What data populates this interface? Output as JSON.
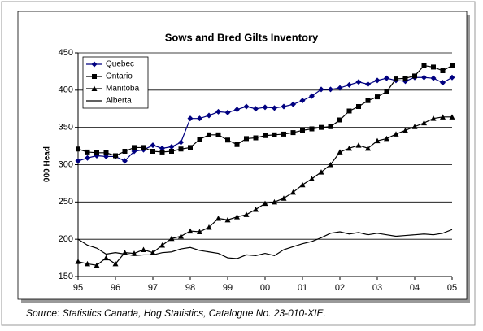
{
  "chart_data": {
    "type": "line",
    "title": "Sows and Bred Gilts Inventory",
    "ylabel": "000 Head",
    "source": "Source: Statistics Canada, Hog Statistics, Catalogue No. 23-010-XIE.",
    "categories": [
      "95",
      null,
      null,
      null,
      "96",
      null,
      null,
      null,
      "97",
      null,
      null,
      null,
      "98",
      null,
      null,
      null,
      "99",
      null,
      null,
      null,
      "00",
      null,
      null,
      null,
      "01",
      null,
      null,
      null,
      "02",
      null,
      null,
      null,
      "03",
      null,
      null,
      null,
      "04",
      null,
      null,
      null,
      "05"
    ],
    "ylim": [
      150,
      450
    ],
    "yticks": [
      150,
      200,
      250,
      300,
      350,
      400,
      450
    ],
    "grid": true,
    "legend": "top-left",
    "series": [
      {
        "name": "Quebec",
        "color": "#000080",
        "marker": "diamond",
        "values": [
          305,
          309,
          312,
          311,
          311,
          305,
          318,
          320,
          326,
          322,
          324,
          330,
          362,
          362,
          366,
          371,
          370,
          374,
          378,
          375,
          377,
          376,
          378,
          381,
          386,
          392,
          401,
          401,
          403,
          407,
          411,
          408,
          413,
          416,
          413,
          412,
          417,
          417,
          416,
          410,
          417
        ]
      },
      {
        "name": "Ontario",
        "color": "#000000",
        "marker": "square",
        "values": [
          321,
          317,
          316,
          316,
          312,
          318,
          323,
          323,
          318,
          317,
          318,
          321,
          323,
          334,
          340,
          340,
          333,
          327,
          335,
          336,
          339,
          340,
          341,
          343,
          346,
          348,
          350,
          351,
          360,
          372,
          378,
          386,
          391,
          398,
          415,
          416,
          419,
          433,
          431,
          426,
          433
        ]
      },
      {
        "name": "Manitoba",
        "color": "#000000",
        "marker": "triangle",
        "values": [
          170,
          167,
          165,
          175,
          167,
          182,
          181,
          186,
          182,
          192,
          201,
          204,
          211,
          210,
          216,
          228,
          226,
          230,
          233,
          240,
          248,
          250,
          255,
          263,
          273,
          281,
          290,
          300,
          317,
          322,
          326,
          322,
          332,
          335,
          341,
          346,
          351,
          356,
          362,
          364,
          364
        ]
      },
      {
        "name": "Alberta",
        "color": "#000000",
        "marker": "none",
        "values": [
          200,
          192,
          188,
          180,
          182,
          180,
          178,
          179,
          179,
          182,
          183,
          187,
          189,
          185,
          183,
          181,
          175,
          174,
          179,
          178,
          181,
          178,
          186,
          190,
          194,
          197,
          202,
          208,
          210,
          207,
          209,
          206,
          208,
          206,
          204,
          205,
          206,
          207,
          206,
          208,
          213
        ]
      }
    ]
  }
}
